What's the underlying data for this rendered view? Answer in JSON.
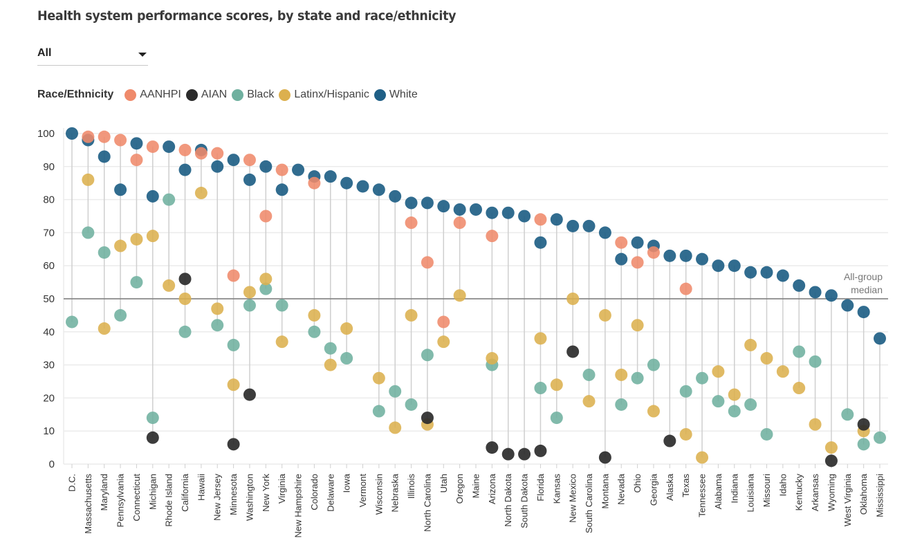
{
  "title": "Health system performance scores, by state and race/ethnicity",
  "filter": {
    "selected": "All"
  },
  "legend": {
    "title": "Race/Ethnicity",
    "items": [
      {
        "key": "aanhpi",
        "label": "AANHPI",
        "color": "#ef8a6b"
      },
      {
        "key": "aian",
        "label": "AIAN",
        "color": "#2b2b2b"
      },
      {
        "key": "black",
        "label": "Black",
        "color": "#6fb09f"
      },
      {
        "key": "latinx",
        "label": "Latinx/Hispanic",
        "color": "#dcb04e"
      },
      {
        "key": "white",
        "label": "White",
        "color": "#1f5f86"
      }
    ]
  },
  "chart_data": {
    "type": "scatter",
    "subtype": "dot-strip",
    "title": "Health system performance scores, by state and race/ethnicity",
    "xlabel": "",
    "ylabel": "",
    "ylim": [
      0,
      100
    ],
    "yticks": [
      0,
      10,
      20,
      30,
      40,
      50,
      60,
      70,
      80,
      90,
      100
    ],
    "grid": true,
    "reference_line": {
      "value": 50,
      "label_line1": "All-group",
      "label_line2": "median"
    },
    "categories": [
      "D.C.",
      "Massachusetts",
      "Maryland",
      "Pennsylvania",
      "Connecticut",
      "Michigan",
      "Rhode Island",
      "California",
      "Hawaii",
      "New Jersey",
      "Minnesota",
      "Washington",
      "New York",
      "Virginia",
      "New Hampshire",
      "Colorado",
      "Delaware",
      "Iowa",
      "Vermont",
      "Wisconsin",
      "Nebraska",
      "Illinois",
      "North Carolina",
      "Utah",
      "Oregon",
      "Maine",
      "Arizona",
      "North Dakota",
      "South Dakota",
      "Florida",
      "Kansas",
      "New Mexico",
      "South Carolina",
      "Montana",
      "Nevada",
      "Ohio",
      "Georgia",
      "Alaska",
      "Texas",
      "Tennessee",
      "Alabama",
      "Indiana",
      "Louisiana",
      "Missouri",
      "Idaho",
      "Kentucky",
      "Arkansas",
      "Wyoming",
      "West Virginia",
      "Oklahoma",
      "Mississippi"
    ],
    "series": [
      {
        "name": "AANHPI",
        "key": "aanhpi",
        "values": [
          null,
          99,
          99,
          98,
          92,
          96,
          null,
          95,
          94,
          94,
          57,
          92,
          75,
          89,
          null,
          85,
          null,
          null,
          null,
          null,
          null,
          73,
          61,
          43,
          73,
          null,
          69,
          null,
          null,
          74,
          null,
          null,
          null,
          null,
          67,
          61,
          64,
          null,
          53,
          null,
          null,
          null,
          null,
          null,
          null,
          null,
          null,
          null,
          null,
          null,
          null
        ]
      },
      {
        "name": "AIAN",
        "key": "aian",
        "values": [
          null,
          null,
          null,
          null,
          null,
          8,
          null,
          56,
          null,
          null,
          6,
          21,
          null,
          null,
          null,
          null,
          null,
          null,
          null,
          null,
          null,
          null,
          14,
          null,
          null,
          null,
          5,
          3,
          3,
          4,
          null,
          34,
          null,
          2,
          null,
          null,
          null,
          7,
          null,
          null,
          null,
          null,
          null,
          null,
          null,
          null,
          null,
          1,
          null,
          12,
          null
        ]
      },
      {
        "name": "Black",
        "key": "black",
        "values": [
          43,
          70,
          64,
          45,
          55,
          14,
          80,
          40,
          null,
          42,
          36,
          48,
          53,
          48,
          null,
          40,
          35,
          32,
          null,
          16,
          22,
          18,
          33,
          null,
          null,
          null,
          30,
          null,
          null,
          23,
          14,
          null,
          27,
          null,
          18,
          26,
          30,
          null,
          22,
          26,
          19,
          16,
          18,
          9,
          null,
          34,
          31,
          null,
          15,
          6,
          8
        ]
      },
      {
        "name": "Latinx/Hispanic",
        "key": "latinx",
        "values": [
          null,
          86,
          41,
          66,
          68,
          69,
          54,
          50,
          82,
          47,
          24,
          52,
          56,
          37,
          null,
          45,
          30,
          41,
          null,
          26,
          11,
          45,
          12,
          37,
          51,
          null,
          32,
          null,
          null,
          38,
          24,
          50,
          19,
          45,
          27,
          42,
          16,
          null,
          9,
          2,
          28,
          21,
          36,
          32,
          28,
          23,
          12,
          5,
          null,
          10,
          null
        ]
      },
      {
        "name": "White",
        "key": "white",
        "values": [
          100,
          98,
          93,
          83,
          97,
          81,
          96,
          89,
          95,
          90,
          92,
          86,
          90,
          83,
          89,
          87,
          87,
          85,
          84,
          83,
          81,
          79,
          79,
          78,
          77,
          77,
          76,
          76,
          75,
          67,
          74,
          72,
          72,
          70,
          62,
          67,
          66,
          63,
          63,
          62,
          60,
          60,
          58,
          58,
          57,
          54,
          52,
          51,
          48,
          46,
          38
        ]
      }
    ]
  }
}
